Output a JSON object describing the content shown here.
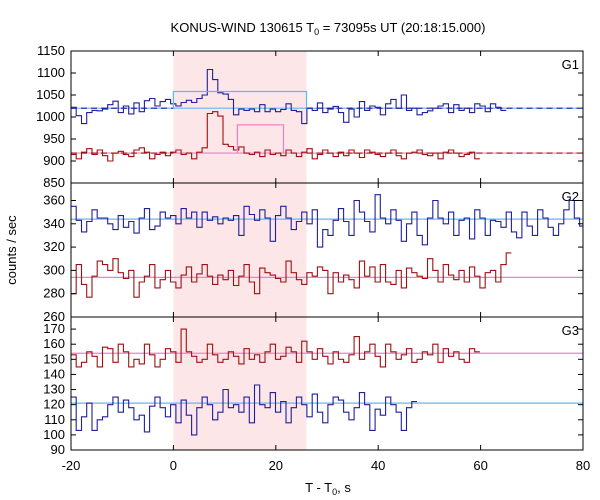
{
  "chart_data": {
    "type": "line",
    "title_parts": {
      "prefix": "KONUS-WIND 130615 T",
      "sub": "0",
      "suffix": " = 73095s UT (20:18:15.000)"
    },
    "xlabel_parts": {
      "prefix": "T - T",
      "sub": "0",
      "suffix": ", s"
    },
    "ylabel": "counts / sec",
    "xlim": [
      -20,
      80
    ],
    "xticks": [
      -20,
      0,
      20,
      40,
      60,
      80
    ],
    "highlight_interval": [
      0,
      26
    ],
    "highlight_color": "#fde6e8",
    "panels": [
      {
        "name": "G1",
        "ylim": [
          850,
          1150
        ],
        "yticks": [
          850,
          900,
          950,
          1000,
          1050,
          1100,
          1150
        ],
        "series": [
          {
            "color": "#1f1fa0",
            "fit_color": "#60b8f0",
            "fit_dash_color": "#1f1fa0",
            "values": [
              1022,
              1003,
              985,
              1010,
              1015,
              1014,
              1018,
              1028,
              1036,
              1010,
              1025,
              1007,
              1032,
              1012,
              1037,
              1042,
              1025,
              1035,
              1040,
              1030,
              1025,
              1033,
              1038,
              1033,
              1042,
              1050,
              1108,
              1085,
              1055,
              1052,
              1040,
              1005,
              1018,
              1015,
              1018,
              1012,
              1028,
              1012,
              1018,
              1012,
              1017,
              1030,
              1015,
              1012,
              985,
              1020,
              1015,
              1032,
              1010,
              1018,
              1024,
              1010,
              988,
              1018,
              1000,
              1035,
              1015,
              1025,
              1022,
              1005,
              1030,
              1040,
              1020,
              1050,
              1015,
              1020,
              1005,
              1010,
              1014,
              1020,
              1025,
              1030,
              1010,
              1028,
              1015,
              1020,
              1010,
              1030,
              1025,
              1012,
              1030,
              1022,
              1015
            ],
            "fit_level": 1020,
            "interval_level": 1058,
            "flux_curve": "blue"
          },
          {
            "color": "#a01010",
            "fit_color": "#f080c0",
            "fit_dash_color": "#a01010",
            "values": [
              915,
              905,
              920,
              928,
              915,
              925,
              912,
              900,
              918,
              922,
              915,
              910,
              925,
              930,
              920,
              905,
              915,
              920,
              912,
              920,
              925,
              915,
              918,
              905,
              920,
              930,
              1008,
              1012,
              1002,
              938,
              933,
              925,
              932,
              918,
              915,
              920,
              910,
              925,
              915,
              918,
              912,
              925,
              918,
              910,
              920,
              928,
              905,
              915,
              925,
              918,
              910,
              920,
              912,
              925,
              918,
              908,
              925,
              920,
              915,
              910,
              918,
              925,
              912,
              905,
              918,
              920,
              925,
              915,
              912,
              918,
              905,
              920,
              925,
              918,
              910,
              915,
              920,
              905
            ],
            "fit_level": 918,
            "interval_level": 982,
            "flux_curve": "red"
          }
        ]
      },
      {
        "name": "G2",
        "ylim": [
          260,
          375
        ],
        "yticks": [
          260,
          280,
          300,
          320,
          340,
          360
        ],
        "series": [
          {
            "color": "#1f1fa0",
            "fit_color": "#60b8f0",
            "values": [
              355,
              343,
              333,
              342,
              352,
              345,
              345,
              340,
              335,
              347,
              337,
              342,
              332,
              345,
              353,
              335,
              338,
              350,
              345,
              347,
              340,
              353,
              345,
              350,
              337,
              350,
              343,
              346,
              340,
              345,
              343,
              347,
              330,
              355,
              348,
              343,
              352,
              345,
              325,
              347,
              355,
              345,
              335,
              342,
              350,
              340,
              352,
              320,
              335,
              330,
              343,
              353,
              342,
              330,
              360,
              350,
              342,
              333,
              365,
              345,
              340,
              352,
              343,
              325,
              340,
              350,
              330,
              322,
              345,
              360,
              345,
              340,
              350,
              330,
              343,
              345,
              327,
              352,
              345,
              330,
              343,
              342,
              337,
              350,
              333,
              328,
              350,
              338,
              330,
              352,
              345,
              337,
              330,
              340,
              352,
              360,
              345,
              338,
              325,
              343,
              335,
              348,
              340,
              345
            ],
            "fit_level": 344
          },
          {
            "color": "#a01010",
            "fit_color": "#f080c0",
            "values": [
              280,
              305,
              288,
              277,
              295,
              308,
              305,
              300,
              310,
              298,
              293,
              300,
              277,
              290,
              295,
              305,
              285,
              292,
              300,
              290,
              285,
              296,
              303,
              290,
              297,
              305,
              295,
              288,
              296,
              292,
              300,
              287,
              295,
              305,
              290,
              280,
              302,
              298,
              296,
              293,
              290,
              308,
              298,
              292,
              288,
              298,
              295,
              303,
              300,
              280,
              298,
              290,
              296,
              292,
              285,
              308,
              295,
              303,
              290,
              305,
              290,
              288,
              300,
              285,
              302,
              298,
              295,
              293,
              310,
              300,
              290,
              305,
              296,
              292,
              300,
              290,
              303,
              295,
              285,
              298,
              300,
              290,
              305,
              315
            ],
            "fit_level": 294
          }
        ]
      },
      {
        "name": "G3",
        "ylim": [
          90,
          178
        ],
        "yticks": [
          90,
          100,
          110,
          120,
          130,
          140,
          150,
          160,
          170
        ],
        "series": [
          {
            "color": "#a01010",
            "fit_color": "#f080c0",
            "values": [
              153,
              145,
              148,
              155,
              152,
              145,
              158,
              157,
              148,
              160,
              155,
              145,
              150,
              147,
              160,
              153,
              145,
              150,
              157,
              155,
              148,
              170,
              155,
              152,
              148,
              150,
              160,
              153,
              148,
              150,
              155,
              152,
              147,
              157,
              150,
              153,
              148,
              155,
              160,
              150,
              152,
              158,
              155,
              148,
              162,
              155,
              150,
              157,
              152,
              147,
              155,
              150,
              148,
              153,
              165,
              150,
              155,
              160,
              152,
              145,
              160,
              155,
              150,
              153,
              157,
              148,
              150,
              155,
              153,
              160,
              148,
              157,
              152,
              155,
              150,
              148,
              157,
              155
            ],
            "fit_level": 154
          },
          {
            "color": "#1f1fa0",
            "fit_color": "#60b8f0",
            "values": [
              125,
              103,
              112,
              121,
              103,
              110,
              112,
              120,
              125,
              115,
              123,
              118,
              110,
              113,
              102,
              119,
              125,
              118,
              112,
              120,
              108,
              123,
              113,
              100,
              118,
              125,
              120,
              110,
              115,
              130,
              118,
              120,
              115,
              125,
              108,
              133,
              120,
              118,
              128,
              115,
              122,
              108,
              118,
              125,
              120,
              112,
              127,
              115,
              108,
              120,
              125,
              123,
              115,
              110,
              118,
              128,
              120,
              103,
              117,
              113,
              125,
              120,
              115,
              103,
              118,
              122
            ],
            "fit_level": 121
          }
        ]
      }
    ]
  },
  "colors": {
    "blue": "#1f1fa0",
    "red": "#a01010",
    "cyan": "#60b8f0",
    "pink": "#f080c0",
    "highlight": "#fde6e8"
  }
}
